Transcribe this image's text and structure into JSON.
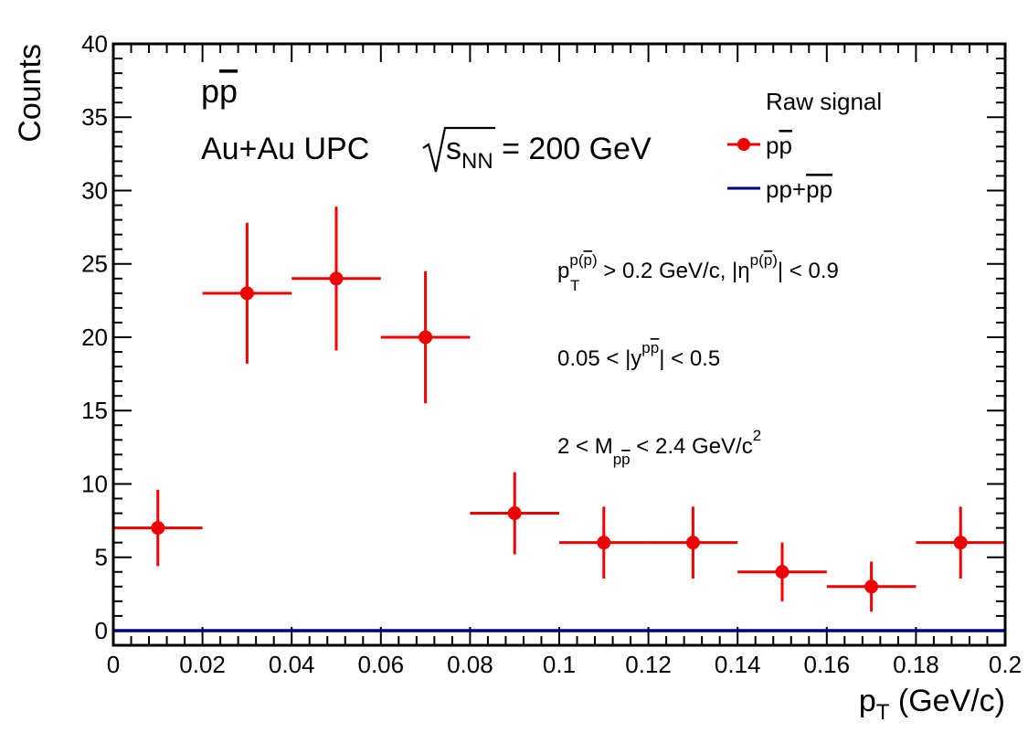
{
  "chart_data": {
    "type": "scatter",
    "xlabel": "p",
    "xlabel_sub": "T",
    "xlabel_unit": "(GeV/c)",
    "ylabel": "Counts",
    "xlim": [
      0,
      0.2
    ],
    "ylim": [
      -1,
      40
    ],
    "x_ticks": [
      "0",
      "0.02",
      "0.04",
      "0.06",
      "0.08",
      "0.1",
      "0.12",
      "0.14",
      "0.16",
      "0.18",
      "0.2"
    ],
    "y_ticks": [
      "0",
      "5",
      "10",
      "15",
      "20",
      "25",
      "30",
      "35",
      "40"
    ],
    "grid": false,
    "legend_position": "top-right",
    "colors": {
      "data": "#ee0000",
      "baseline": "#00007f"
    },
    "series": [
      {
        "name": "pp̄",
        "kind": "points-with-errors",
        "points": [
          {
            "x": 0.01,
            "y": 7,
            "xerr": 0.01,
            "yerr": 2.6
          },
          {
            "x": 0.03,
            "y": 23,
            "xerr": 0.01,
            "yerr": 4.8
          },
          {
            "x": 0.05,
            "y": 24,
            "xerr": 0.01,
            "yerr": 4.9
          },
          {
            "x": 0.07,
            "y": 20,
            "xerr": 0.01,
            "yerr": 4.5
          },
          {
            "x": 0.09,
            "y": 8,
            "xerr": 0.01,
            "yerr": 2.8
          },
          {
            "x": 0.11,
            "y": 6,
            "xerr": 0.01,
            "yerr": 2.45
          },
          {
            "x": 0.13,
            "y": 6,
            "xerr": 0.01,
            "yerr": 2.45
          },
          {
            "x": 0.15,
            "y": 4,
            "xerr": 0.01,
            "yerr": 2.0
          },
          {
            "x": 0.17,
            "y": 3,
            "xerr": 0.01,
            "yerr": 1.7
          },
          {
            "x": 0.19,
            "y": 6,
            "xerr": 0.01,
            "yerr": 2.45
          }
        ]
      },
      {
        "name": "pp+p̄p̄",
        "kind": "line",
        "x": [
          0,
          0.2
        ],
        "y": [
          0,
          0
        ]
      }
    ],
    "legend": {
      "title": "Raw signal",
      "entries": [
        {
          "label": "p",
          "label_ov": "p"
        },
        {
          "label": "pp+",
          "label_ov": "pp"
        }
      ]
    },
    "annotations": {
      "particle": {
        "a": "p",
        "b": "p"
      },
      "system": {
        "a": "Au+Au UPC ",
        "s": "s",
        "sub": "NN",
        "b": " = 200 GeV"
      },
      "cut1": {
        "p": "p",
        "p_sub": "T",
        "p_sup_a": "p(",
        "p_sup_ov": "p",
        "p_sup_b": ")",
        "mid": " > 0.2 GeV/c, |η",
        "eta_sup_a": "p(",
        "eta_sup_ov": "p",
        "eta_sup_b": ")",
        "end": "| < 0.9"
      },
      "cut2": {
        "a": "0.05 < |y",
        "sup_a": "p",
        "sup_ov": "p",
        "b": "| < 0.5"
      },
      "cut3": {
        "a": "2 < M",
        "sub_a": "p",
        "sub_ov": "p",
        "b": " < 2.4 GeV/c",
        "sup": "2"
      }
    }
  }
}
